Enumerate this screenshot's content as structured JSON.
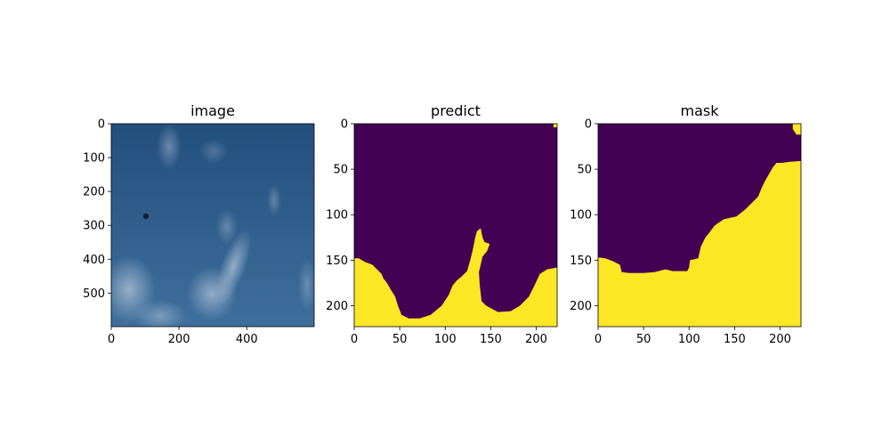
{
  "chart_data": [
    {
      "type": "heatmap",
      "title": "image",
      "content": "photo of blue sky with thin white clouds",
      "xlim": [
        0,
        599
      ],
      "ylim": [
        599,
        0
      ],
      "xticks": [
        0,
        200,
        400
      ],
      "yticks": [
        0,
        100,
        200,
        300,
        400,
        500
      ],
      "colors": {
        "sky_top": "#234f7d",
        "sky_bottom": "#3f6f9c",
        "cloud": "#c9d6e6"
      }
    },
    {
      "type": "heatmap",
      "title": "predict",
      "content": "binary segmentation prediction",
      "xlim": [
        0,
        223
      ],
      "ylim": [
        223,
        0
      ],
      "xticks": [
        0,
        50,
        100,
        150,
        200
      ],
      "yticks": [
        0,
        50,
        100,
        150,
        200
      ],
      "classes": [
        {
          "value": 0,
          "color": "#440154"
        },
        {
          "value": 1,
          "color": "#fde725"
        }
      ],
      "boundary": [
        [
          0,
          148
        ],
        [
          5,
          148
        ],
        [
          12,
          152
        ],
        [
          20,
          155
        ],
        [
          25,
          160
        ],
        [
          30,
          165
        ],
        [
          32,
          170
        ],
        [
          36,
          175
        ],
        [
          40,
          182
        ],
        [
          45,
          190
        ],
        [
          48,
          200
        ],
        [
          52,
          210
        ],
        [
          60,
          214
        ],
        [
          72,
          214
        ],
        [
          84,
          210
        ],
        [
          96,
          200
        ],
        [
          104,
          188
        ],
        [
          108,
          178
        ],
        [
          113,
          172
        ],
        [
          118,
          168
        ],
        [
          124,
          162
        ],
        [
          127,
          152
        ],
        [
          130,
          140
        ],
        [
          133,
          125
        ],
        [
          135,
          118
        ],
        [
          139,
          115
        ],
        [
          141,
          125
        ],
        [
          143,
          130
        ],
        [
          149,
          132
        ],
        [
          146,
          140
        ],
        [
          141,
          146
        ],
        [
          139,
          155
        ],
        [
          137,
          163
        ],
        [
          138,
          178
        ],
        [
          140,
          195
        ],
        [
          145,
          200
        ],
        [
          158,
          207
        ],
        [
          172,
          206
        ],
        [
          182,
          200
        ],
        [
          192,
          190
        ],
        [
          198,
          178
        ],
        [
          204,
          165
        ],
        [
          212,
          160
        ],
        [
          223,
          158
        ]
      ],
      "corner_blob": [
        [
          219,
          0
        ],
        [
          223,
          0
        ],
        [
          223,
          4
        ],
        [
          219,
          4
        ]
      ]
    },
    {
      "type": "heatmap",
      "title": "mask",
      "content": "binary ground-truth mask",
      "xlim": [
        0,
        223
      ],
      "ylim": [
        223,
        0
      ],
      "xticks": [
        0,
        50,
        100,
        150,
        200
      ],
      "yticks": [
        0,
        50,
        100,
        150,
        200
      ],
      "classes": [
        {
          "value": 0,
          "color": "#440154"
        },
        {
          "value": 1,
          "color": "#fde725"
        }
      ],
      "boundary": [
        [
          0,
          147
        ],
        [
          8,
          148
        ],
        [
          16,
          151
        ],
        [
          24,
          155
        ],
        [
          26,
          163
        ],
        [
          34,
          164
        ],
        [
          50,
          164
        ],
        [
          62,
          163
        ],
        [
          74,
          160
        ],
        [
          82,
          162
        ],
        [
          90,
          162
        ],
        [
          98,
          162
        ],
        [
          100,
          158
        ],
        [
          101,
          150
        ],
        [
          110,
          148
        ],
        [
          113,
          135
        ],
        [
          118,
          125
        ],
        [
          122,
          120
        ],
        [
          128,
          112
        ],
        [
          138,
          105
        ],
        [
          152,
          102
        ],
        [
          162,
          94
        ],
        [
          168,
          88
        ],
        [
          176,
          80
        ],
        [
          180,
          70
        ],
        [
          184,
          62
        ],
        [
          188,
          55
        ],
        [
          192,
          48
        ],
        [
          196,
          43
        ],
        [
          202,
          43
        ],
        [
          210,
          42
        ],
        [
          223,
          41
        ]
      ],
      "corner_blob": [
        [
          214,
          0
        ],
        [
          223,
          0
        ],
        [
          223,
          12
        ],
        [
          218,
          12
        ],
        [
          214,
          6
        ]
      ]
    }
  ]
}
